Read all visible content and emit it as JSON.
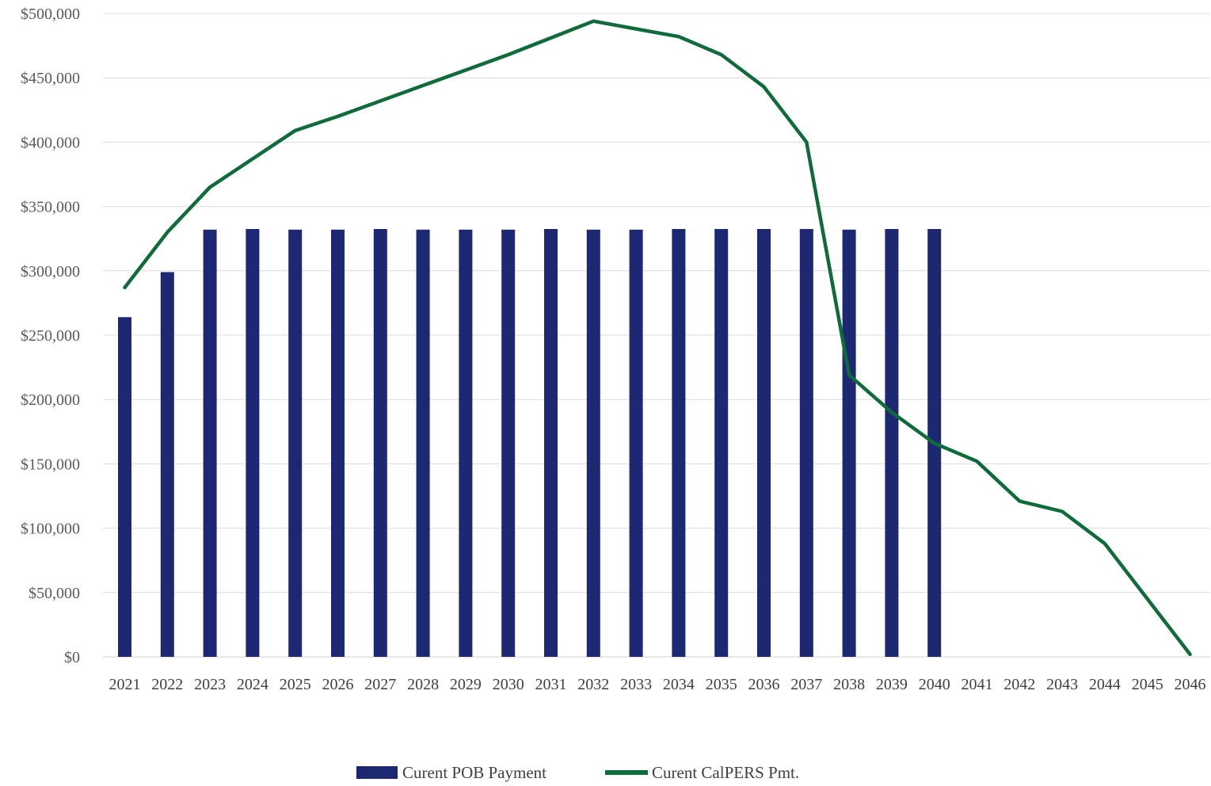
{
  "chart_data": {
    "type": "bar",
    "title": "",
    "xlabel": "",
    "ylabel": "",
    "ylim": [
      0,
      500000
    ],
    "yticks": [
      0,
      50000,
      100000,
      150000,
      200000,
      250000,
      300000,
      350000,
      400000,
      450000,
      500000
    ],
    "ytick_labels": [
      "$0",
      "$50,000",
      "$100,000",
      "$150,000",
      "$200,000",
      "$250,000",
      "$300,000",
      "$350,000",
      "$400,000",
      "$450,000",
      "$500,000"
    ],
    "grid": "horizontal",
    "legend_position": "bottom",
    "categories": [
      "2021",
      "2022",
      "2023",
      "2024",
      "2025",
      "2026",
      "2027",
      "2028",
      "2029",
      "2030",
      "2031",
      "2032",
      "2033",
      "2034",
      "2035",
      "2036",
      "2037",
      "2038",
      "2039",
      "2040",
      "2041",
      "2042",
      "2043",
      "2044",
      "2045",
      "2046"
    ],
    "series": [
      {
        "name": "Curent POB Payment",
        "type": "bar",
        "color": "#1c2872",
        "values": [
          264000,
          299000,
          332000,
          332500,
          332000,
          332000,
          332500,
          332000,
          332000,
          332000,
          332500,
          332000,
          332000,
          332500,
          332500,
          332500,
          332500,
          332000,
          332500,
          332500,
          null,
          null,
          null,
          null,
          null,
          null
        ]
      },
      {
        "name": "Curent CalPERS Pmt.",
        "type": "line",
        "color": "#0f6b3a",
        "values": [
          287000,
          330000,
          365000,
          387000,
          409000,
          420000,
          432000,
          444000,
          456000,
          468000,
          481000,
          494000,
          488000,
          482000,
          468000,
          443000,
          400000,
          219000,
          190000,
          166000,
          152000,
          121000,
          113000,
          88000,
          45000,
          2000
        ]
      }
    ]
  }
}
